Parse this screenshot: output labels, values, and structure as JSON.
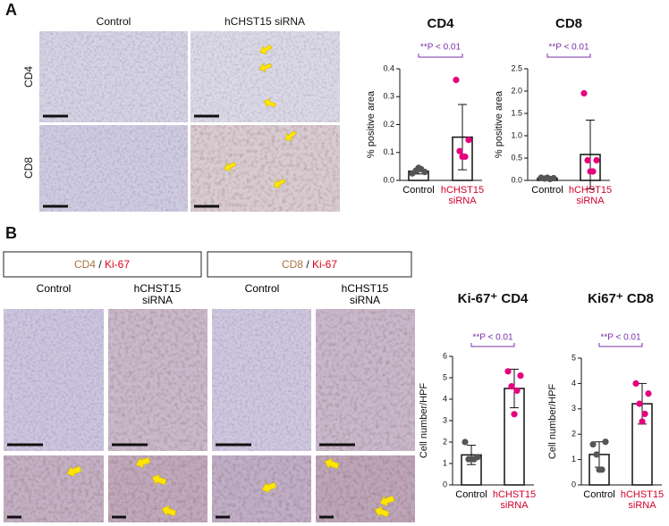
{
  "figure": {
    "panel_a": {
      "label": "A",
      "columns": [
        "Control",
        "hCHST15 siRNA"
      ],
      "rows": [
        "CD4",
        "CD8"
      ]
    },
    "panel_b": {
      "label": "B",
      "groups": [
        {
          "marker": "CD4",
          "sep": "/",
          "stain": "Ki-67"
        },
        {
          "marker": "CD8",
          "sep": "/",
          "stain": "Ki-67"
        }
      ],
      "columns": [
        "Control",
        "hCHST15 siRNA",
        "Control",
        "hCHST15 siRNA"
      ]
    }
  },
  "chart_data": [
    {
      "type": "bar",
      "title": "CD4",
      "annotation": "**P < 0.01",
      "annotation_color": "#7b2fa8",
      "ylabel": "% positive area",
      "categories": [
        "Control",
        "hCHST15 siRNA"
      ],
      "values": [
        0.033,
        0.155
      ],
      "errors": [
        0.01,
        0.117
      ],
      "points": [
        [
          0.025,
          0.03,
          0.035,
          0.04,
          0.045
        ],
        [
          0.36,
          0.145,
          0.105,
          0.085,
          0.085
        ]
      ],
      "point_colors": [
        "#555555",
        "#e6007e"
      ],
      "ylim": [
        0,
        0.4
      ],
      "yticks": [
        {
          "value": 0,
          "label": "0.0"
        },
        0.1,
        0.2,
        0.3,
        0.4
      ]
    },
    {
      "type": "bar",
      "title": "CD8",
      "annotation": "**P < 0.01",
      "annotation_color": "#7b2fa8",
      "ylabel": "% positive area",
      "categories": [
        "Control",
        "hCHST15 siRNA"
      ],
      "values": [
        0.05,
        0.58
      ],
      "errors": [
        0.03,
        0.77
      ],
      "points": [
        [
          0.06,
          0.05,
          0.04,
          0.03,
          0.06
        ],
        [
          1.95,
          0.45,
          0.45,
          0.2,
          0.2
        ]
      ],
      "point_colors": [
        "#555555",
        "#e6007e"
      ],
      "ylim": [
        0,
        2.5
      ],
      "yticks": [
        {
          "value": 0,
          "label": "0.0"
        },
        0.5,
        {
          "value": 1,
          "label": "1.0"
        },
        1.5,
        {
          "value": 2,
          "label": "2.0"
        },
        2.5
      ]
    },
    {
      "type": "bar",
      "title": "Ki-67⁺ CD4",
      "annotation": "**P < 0.01",
      "annotation_color": "#7b2fa8",
      "ylabel": "Cell number/HPF",
      "categories": [
        "Control",
        "hCHST15 siRNA"
      ],
      "values": [
        1.4,
        4.5
      ],
      "errors": [
        0.45,
        0.9
      ],
      "points": [
        [
          2.0,
          1.3,
          1.2,
          1.2,
          1.2
        ],
        [
          5.3,
          5.1,
          4.6,
          4.4,
          3.3
        ]
      ],
      "point_colors": [
        "#555555",
        "#e6007e"
      ],
      "ylim": [
        0,
        6
      ],
      "yticks": [
        0,
        1,
        2,
        3,
        4,
        5,
        6
      ]
    },
    {
      "type": "bar",
      "title": "Ki67⁺ CD8",
      "annotation": "**P < 0.01",
      "annotation_color": "#7b2fa8",
      "ylabel": "Cell number/HPF",
      "categories": [
        "Control",
        "hCHST15 siRNA"
      ],
      "values": [
        1.2,
        3.2
      ],
      "errors": [
        0.5,
        0.8
      ],
      "points": [
        [
          1.6,
          1.7,
          1.2,
          0.6,
          0.6
        ],
        [
          4.0,
          3.6,
          3.2,
          2.8,
          2.5
        ]
      ],
      "point_colors": [
        "#555555",
        "#e6007e"
      ],
      "ylim": [
        0,
        5
      ],
      "yticks": [
        0,
        1,
        2,
        3,
        4,
        5
      ]
    }
  ]
}
